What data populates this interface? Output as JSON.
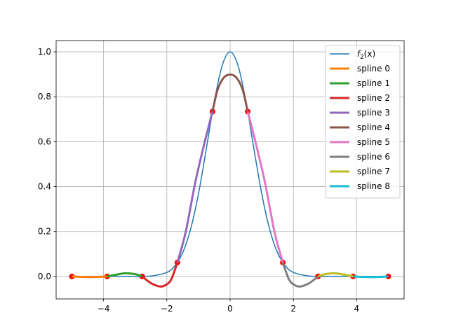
{
  "chart_data": {
    "type": "line",
    "title": "",
    "xlabel": "",
    "ylabel": "",
    "xlim": [
      -5.5,
      5.5
    ],
    "ylim": [
      -0.1,
      1.05
    ],
    "grid": true,
    "legend_position": "top-right",
    "x_ticks": [
      -4,
      -2,
      0,
      2,
      4
    ],
    "y_ticks": [
      0.0,
      0.2,
      0.4,
      0.6,
      0.8,
      1.0
    ],
    "x_tick_labels": [
      "−4",
      "−2",
      "0",
      "2",
      "4"
    ],
    "y_tick_labels": [
      "0.0",
      "0.2",
      "0.4",
      "0.6",
      "0.8",
      "1.0"
    ],
    "function": {
      "name": "f",
      "subscript": "2",
      "argument": "(x)",
      "color": "#1f77b4",
      "points": [
        [
          -5.0,
          0.0
        ],
        [
          -4.0,
          0.0
        ],
        [
          -3.0,
          0.0
        ],
        [
          -2.5,
          0.002
        ],
        [
          -2.0,
          0.018
        ],
        [
          -1.75,
          0.047
        ],
        [
          -1.5,
          0.105
        ],
        [
          -1.25,
          0.21
        ],
        [
          -1.0,
          0.368
        ],
        [
          -0.75,
          0.57
        ],
        [
          -0.5,
          0.779
        ],
        [
          -0.25,
          0.939
        ],
        [
          0.0,
          1.0
        ],
        [
          0.25,
          0.939
        ],
        [
          0.5,
          0.779
        ],
        [
          0.75,
          0.57
        ],
        [
          1.0,
          0.368
        ],
        [
          1.25,
          0.21
        ],
        [
          1.5,
          0.105
        ],
        [
          1.75,
          0.047
        ],
        [
          2.0,
          0.018
        ],
        [
          2.5,
          0.002
        ],
        [
          3.0,
          0.0
        ],
        [
          4.0,
          0.0
        ],
        [
          5.0,
          0.0
        ]
      ]
    },
    "nodes": {
      "color": "#ff0000",
      "points": [
        [
          -5.0,
          0.0
        ],
        [
          -3.889,
          0.0
        ],
        [
          -2.778,
          0.0
        ],
        [
          -1.667,
          0.062
        ],
        [
          -0.556,
          0.734
        ],
        [
          0.556,
          0.734
        ],
        [
          1.667,
          0.062
        ],
        [
          2.778,
          0.0
        ],
        [
          3.889,
          0.0
        ],
        [
          5.0,
          0.0
        ]
      ]
    },
    "series": [
      {
        "name": "spline 0",
        "color": "#ff7f0e",
        "points": [
          [
            -5.0,
            0.0
          ],
          [
            -4.72,
            -0.002
          ],
          [
            -4.44,
            -0.003
          ],
          [
            -4.17,
            -0.002
          ],
          [
            -3.889,
            0.0
          ]
        ]
      },
      {
        "name": "spline 1",
        "color": "#2ca02c",
        "points": [
          [
            -3.889,
            0.0
          ],
          [
            -3.6,
            0.008
          ],
          [
            -3.3,
            0.014
          ],
          [
            -3.0,
            0.01
          ],
          [
            -2.778,
            0.0
          ]
        ]
      },
      {
        "name": "spline 2",
        "color": "#d62728",
        "points": [
          [
            -2.778,
            0.0
          ],
          [
            -2.5,
            -0.03
          ],
          [
            -2.2,
            -0.045
          ],
          [
            -2.0,
            -0.035
          ],
          [
            -1.85,
            -0.01
          ],
          [
            -1.667,
            0.062
          ]
        ]
      },
      {
        "name": "spline 3",
        "color": "#9467bd",
        "points": [
          [
            -1.667,
            0.062
          ],
          [
            -1.4,
            0.2
          ],
          [
            -1.1,
            0.42
          ],
          [
            -0.8,
            0.6
          ],
          [
            -0.556,
            0.734
          ]
        ]
      },
      {
        "name": "spline 4",
        "color": "#8c564b",
        "points": [
          [
            -0.556,
            0.734
          ],
          [
            -0.4,
            0.83
          ],
          [
            -0.2,
            0.885
          ],
          [
            0.0,
            0.899
          ],
          [
            0.2,
            0.885
          ],
          [
            0.4,
            0.83
          ],
          [
            0.556,
            0.734
          ]
        ]
      },
      {
        "name": "spline 5",
        "color": "#e377c2",
        "points": [
          [
            0.556,
            0.734
          ],
          [
            0.8,
            0.6
          ],
          [
            1.1,
            0.42
          ],
          [
            1.4,
            0.2
          ],
          [
            1.667,
            0.062
          ]
        ]
      },
      {
        "name": "spline 6",
        "color": "#7f7f7f",
        "points": [
          [
            1.667,
            0.062
          ],
          [
            1.85,
            -0.01
          ],
          [
            2.0,
            -0.035
          ],
          [
            2.2,
            -0.045
          ],
          [
            2.5,
            -0.03
          ],
          [
            2.778,
            0.0
          ]
        ]
      },
      {
        "name": "spline 7",
        "color": "#bcbd22",
        "points": [
          [
            2.778,
            0.0
          ],
          [
            3.0,
            0.01
          ],
          [
            3.3,
            0.014
          ],
          [
            3.6,
            0.008
          ],
          [
            3.889,
            0.0
          ]
        ]
      },
      {
        "name": "spline 8",
        "color": "#17becf",
        "points": [
          [
            3.889,
            0.0
          ],
          [
            4.17,
            -0.002
          ],
          [
            4.44,
            -0.003
          ],
          [
            4.72,
            -0.002
          ],
          [
            5.0,
            0.0
          ]
        ]
      }
    ]
  }
}
